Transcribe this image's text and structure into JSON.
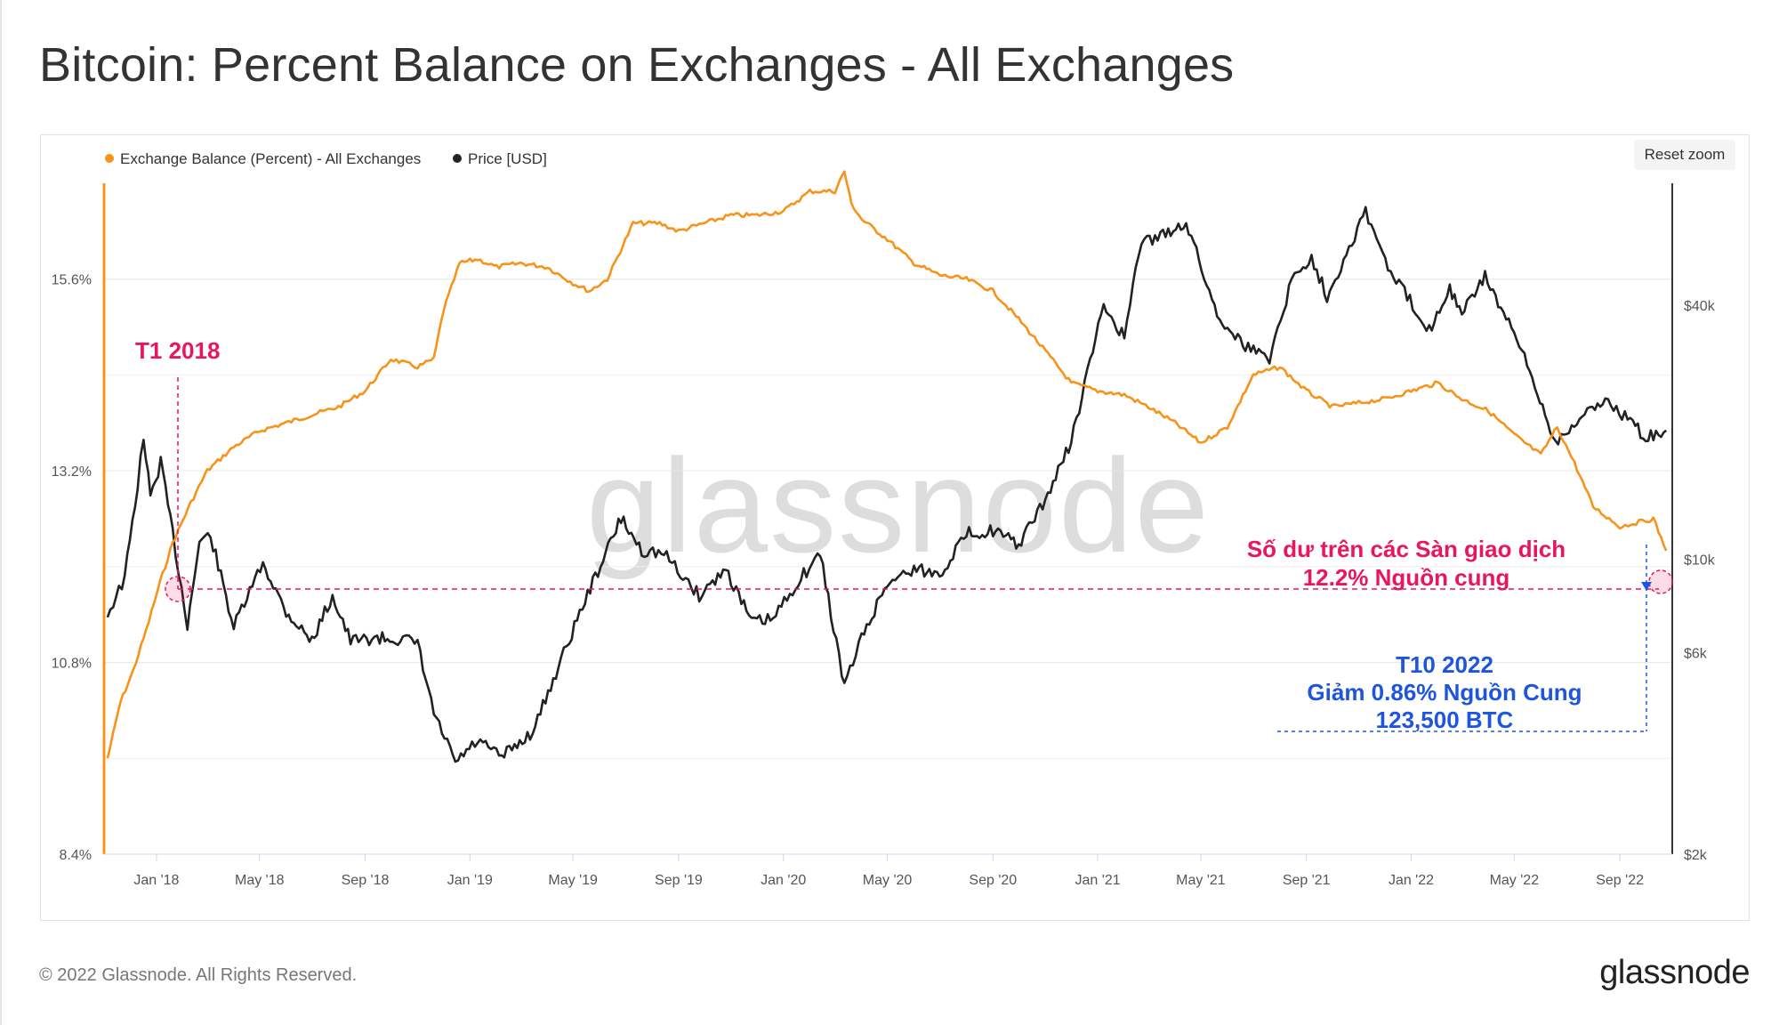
{
  "page": {
    "title": "Bitcoin: Percent Balance on Exchanges - All Exchanges",
    "reset_zoom": "Reset zoom",
    "copyright": "© 2022 Glassnode. All Rights Reserved.",
    "logo": "glassnode",
    "watermark": "glassnode"
  },
  "colors": {
    "balance": "#f7931a",
    "price": "#222222",
    "annotation_red": "#e8175d",
    "annotation_blue": "#1d54e0",
    "grid": "#e6e6e6"
  },
  "chart_data": {
    "type": "line",
    "title": "Bitcoin: Percent Balance on Exchanges - All Exchanges",
    "x_ticks": [
      "Jan '18",
      "May '18",
      "Sep '18",
      "Jan '19",
      "May '19",
      "Sep '19",
      "Jan '20",
      "May '20",
      "Sep '20",
      "Jan '21",
      "May '21",
      "Sep '21",
      "Jan '22",
      "May '22",
      "Sep '22"
    ],
    "xlim": [
      "2017-11-01",
      "2022-11-01"
    ],
    "y_left": {
      "ticks": [
        "8.4%",
        "10.8%",
        "13.2%",
        "15.6%"
      ],
      "tick_values": [
        8.4,
        10.8,
        13.2,
        15.6
      ],
      "ylim": [
        8.4,
        16.8
      ]
    },
    "y_right": {
      "ticks": [
        "$2k",
        "$6k",
        "$10k",
        "$40k"
      ],
      "tick_values": [
        2000,
        6000,
        10000,
        40000
      ],
      "scale": "log"
    },
    "legend": {
      "placement": "top-left"
    },
    "grid": true,
    "series": [
      {
        "name": "Exchange Balance (Percent) - All Exchanges",
        "axis": "left",
        "points": [
          [
            "2017-11-05",
            9.6
          ],
          [
            "2017-11-20",
            10.3
          ],
          [
            "2017-12-05",
            10.7
          ],
          [
            "2017-12-20",
            11.2
          ],
          [
            "2018-01-05",
            11.8
          ],
          [
            "2018-01-20",
            12.3
          ],
          [
            "2018-02-10",
            12.8
          ],
          [
            "2018-03-01",
            13.2
          ],
          [
            "2018-04-01",
            13.5
          ],
          [
            "2018-05-01",
            13.7
          ],
          [
            "2018-06-01",
            13.8
          ],
          [
            "2018-07-01",
            13.9
          ],
          [
            "2018-08-01",
            14.0
          ],
          [
            "2018-09-01",
            14.2
          ],
          [
            "2018-10-01",
            14.6
          ],
          [
            "2018-11-01",
            14.5
          ],
          [
            "2018-11-20",
            14.6
          ],
          [
            "2018-12-01",
            15.2
          ],
          [
            "2018-12-20",
            15.8
          ],
          [
            "2019-01-10",
            15.85
          ],
          [
            "2019-02-01",
            15.75
          ],
          [
            "2019-03-01",
            15.8
          ],
          [
            "2019-04-01",
            15.75
          ],
          [
            "2019-05-01",
            15.55
          ],
          [
            "2019-05-20",
            15.45
          ],
          [
            "2019-06-10",
            15.6
          ],
          [
            "2019-07-10",
            16.3
          ],
          [
            "2019-08-10",
            16.3
          ],
          [
            "2019-09-01",
            16.2
          ],
          [
            "2019-10-01",
            16.3
          ],
          [
            "2019-11-01",
            16.4
          ],
          [
            "2019-12-01",
            16.4
          ],
          [
            "2020-01-01",
            16.45
          ],
          [
            "2020-02-01",
            16.7
          ],
          [
            "2020-03-01",
            16.7
          ],
          [
            "2020-03-12",
            16.95
          ],
          [
            "2020-03-20",
            16.55
          ],
          [
            "2020-04-01",
            16.35
          ],
          [
            "2020-05-01",
            16.1
          ],
          [
            "2020-06-01",
            15.8
          ],
          [
            "2020-07-01",
            15.65
          ],
          [
            "2020-08-01",
            15.6
          ],
          [
            "2020-09-01",
            15.45
          ],
          [
            "2020-10-01",
            15.1
          ],
          [
            "2020-11-01",
            14.7
          ],
          [
            "2020-12-01",
            14.3
          ],
          [
            "2021-01-01",
            14.2
          ],
          [
            "2021-02-01",
            14.15
          ],
          [
            "2021-03-01",
            14.0
          ],
          [
            "2021-04-01",
            13.8
          ],
          [
            "2021-05-01",
            13.55
          ],
          [
            "2021-06-01",
            13.75
          ],
          [
            "2021-07-01",
            14.4
          ],
          [
            "2021-08-01",
            14.5
          ],
          [
            "2021-09-01",
            14.2
          ],
          [
            "2021-10-01",
            14.0
          ],
          [
            "2021-11-01",
            14.05
          ],
          [
            "2021-12-01",
            14.1
          ],
          [
            "2022-01-01",
            14.2
          ],
          [
            "2022-02-01",
            14.3
          ],
          [
            "2022-03-01",
            14.1
          ],
          [
            "2022-04-01",
            13.95
          ],
          [
            "2022-05-01",
            13.65
          ],
          [
            "2022-06-01",
            13.4
          ],
          [
            "2022-06-20",
            13.75
          ],
          [
            "2022-07-10",
            13.3
          ],
          [
            "2022-08-01",
            12.75
          ],
          [
            "2022-09-01",
            12.5
          ],
          [
            "2022-09-20",
            12.55
          ],
          [
            "2022-10-10",
            12.6
          ],
          [
            "2022-10-25",
            12.2
          ]
        ]
      },
      {
        "name": "Price [USD]",
        "axis": "right",
        "points": [
          [
            "2017-11-05",
            7400
          ],
          [
            "2017-11-25",
            9000
          ],
          [
            "2017-12-10",
            15000
          ],
          [
            "2017-12-17",
            19500
          ],
          [
            "2017-12-25",
            14000
          ],
          [
            "2018-01-06",
            17000
          ],
          [
            "2018-01-20",
            11500
          ],
          [
            "2018-02-06",
            7000
          ],
          [
            "2018-02-20",
            11000
          ],
          [
            "2018-03-05",
            11400
          ],
          [
            "2018-04-01",
            6900
          ],
          [
            "2018-05-05",
            9800
          ],
          [
            "2018-06-01",
            7500
          ],
          [
            "2018-07-01",
            6400
          ],
          [
            "2018-07-25",
            8200
          ],
          [
            "2018-08-15",
            6400
          ],
          [
            "2018-09-15",
            6500
          ],
          [
            "2018-10-15",
            6450
          ],
          [
            "2018-11-01",
            6300
          ],
          [
            "2018-11-20",
            4300
          ],
          [
            "2018-12-15",
            3300
          ],
          [
            "2019-01-10",
            3700
          ],
          [
            "2019-02-07",
            3400
          ],
          [
            "2019-03-15",
            3900
          ],
          [
            "2019-04-05",
            5000
          ],
          [
            "2019-05-15",
            8000
          ],
          [
            "2019-06-26",
            12500
          ],
          [
            "2019-07-20",
            10500
          ],
          [
            "2019-08-15",
            10300
          ],
          [
            "2019-09-25",
            8200
          ],
          [
            "2019-10-26",
            9500
          ],
          [
            "2019-11-25",
            7100
          ],
          [
            "2019-12-20",
            7200
          ],
          [
            "2020-01-15",
            8700
          ],
          [
            "2020-02-13",
            10300
          ],
          [
            "2020-03-12",
            5000
          ],
          [
            "2020-04-01",
            6500
          ],
          [
            "2020-05-01",
            8800
          ],
          [
            "2020-06-01",
            9500
          ],
          [
            "2020-07-01",
            9200
          ],
          [
            "2020-08-01",
            11500
          ],
          [
            "2020-09-01",
            11700
          ],
          [
            "2020-10-01",
            10800
          ],
          [
            "2020-11-01",
            13800
          ],
          [
            "2020-12-01",
            19000
          ],
          [
            "2021-01-08",
            40000
          ],
          [
            "2021-02-01",
            33500
          ],
          [
            "2021-02-21",
            57000
          ],
          [
            "2021-03-15",
            58000
          ],
          [
            "2021-04-14",
            63000
          ],
          [
            "2021-05-20",
            38000
          ],
          [
            "2021-06-22",
            32000
          ],
          [
            "2021-07-20",
            30000
          ],
          [
            "2021-08-15",
            46000
          ],
          [
            "2021-09-07",
            52000
          ],
          [
            "2021-09-25",
            42000
          ],
          [
            "2021-11-09",
            67000
          ],
          [
            "2021-12-05",
            49000
          ],
          [
            "2022-01-22",
            35000
          ],
          [
            "2022-02-15",
            44000
          ],
          [
            "2022-03-01",
            38000
          ],
          [
            "2022-03-28",
            47000
          ],
          [
            "2022-05-10",
            31000
          ],
          [
            "2022-06-18",
            19000
          ],
          [
            "2022-07-10",
            21000
          ],
          [
            "2022-08-15",
            24000
          ],
          [
            "2022-09-10",
            21500
          ],
          [
            "2022-10-01",
            19400
          ],
          [
            "2022-10-25",
            20200
          ]
        ]
      }
    ],
    "annotations": [
      {
        "label": "T1 2018"
      },
      {
        "lines": [
          "Số dư trên các Sàn giao dịch",
          "12.2% Nguồn cung"
        ]
      },
      {
        "lines": [
          "T10 2022",
          "Giảm 0.86% Nguồn Cung",
          "123,500 BTC"
        ]
      }
    ]
  }
}
